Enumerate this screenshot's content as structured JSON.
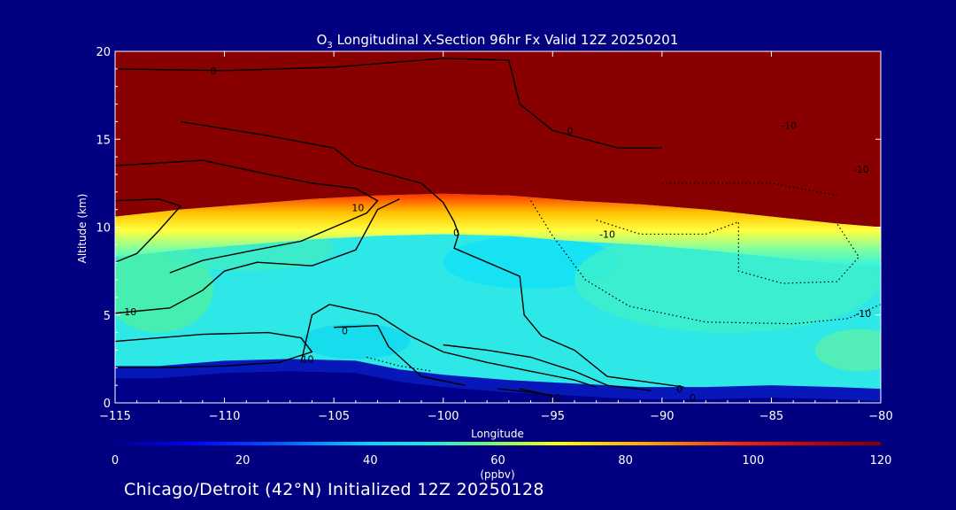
{
  "chart_data": {
    "type": "heatmap",
    "title_prefix": "O",
    "title_sub": "3",
    "title_rest": " Longitudinal X-Section 96hr  Fx Valid 12Z 20250201",
    "xlabel": "Longitude",
    "ylabel": "Altitude (km)",
    "xlim": [
      -115,
      -80
    ],
    "ylim": [
      0,
      20
    ],
    "x_ticks": [
      -115,
      -110,
      -105,
      -100,
      -95,
      -90,
      -85,
      -80
    ],
    "x_tick_labels": [
      "−115",
      "−110",
      "−105",
      "−100",
      "−95",
      "−90",
      "−85",
      "−80"
    ],
    "y_ticks": [
      0,
      5,
      10,
      15,
      20
    ],
    "y_tick_labels": [
      "0",
      "5",
      "10",
      "15",
      "20"
    ],
    "colorbar": {
      "range": [
        0,
        120
      ],
      "ticks": [
        0,
        20,
        40,
        60,
        80,
        100,
        120
      ],
      "tick_labels": [
        "0",
        "20",
        "40",
        "60",
        "80",
        "100",
        "120"
      ],
      "unit": "(ppbv)"
    },
    "shaded_field": {
      "variable": "O3 (ppbv)",
      "stratosphere_value": 120,
      "tropopause_km": [
        {
          "lon": -115,
          "alt": 10.6
        },
        {
          "lon": -112,
          "alt": 11.0
        },
        {
          "lon": -109,
          "alt": 11.3
        },
        {
          "lon": -106,
          "alt": 11.6
        },
        {
          "lon": -103,
          "alt": 11.8
        },
        {
          "lon": -100,
          "alt": 11.9
        },
        {
          "lon": -97,
          "alt": 11.8
        },
        {
          "lon": -94,
          "alt": 11.5
        },
        {
          "lon": -91,
          "alt": 11.3
        },
        {
          "lon": -88,
          "alt": 11.0
        },
        {
          "lon": -85,
          "alt": 10.6
        },
        {
          "lon": -82,
          "alt": 10.2
        },
        {
          "lon": -80,
          "alt": 10.0
        }
      ],
      "surface_km": [
        {
          "lon": -115,
          "alt": 1.6
        },
        {
          "lon": -113,
          "alt": 1.6
        },
        {
          "lon": -110,
          "alt": 1.9
        },
        {
          "lon": -107,
          "alt": 2.0
        },
        {
          "lon": -104,
          "alt": 1.9
        },
        {
          "lon": -102,
          "alt": 1.4
        },
        {
          "lon": -100,
          "alt": 1.1
        },
        {
          "lon": -97,
          "alt": 0.8
        },
        {
          "lon": -94,
          "alt": 0.6
        },
        {
          "lon": -91,
          "alt": 0.4
        },
        {
          "lon": -88,
          "alt": 0.4
        },
        {
          "lon": -85,
          "alt": 0.5
        },
        {
          "lon": -82,
          "alt": 0.4
        },
        {
          "lon": -80,
          "alt": 0.3
        }
      ],
      "troposphere_typical_ppbv": 45
    },
    "contour_labels": [
      {
        "text": "0",
        "lon": -110.5,
        "alt": 18.9
      },
      {
        "text": "0",
        "lon": -94.2,
        "alt": 15.5
      },
      {
        "text": "-10",
        "lon": -84.2,
        "alt": 15.8
      },
      {
        "text": "-10",
        "lon": -80.9,
        "alt": 13.3
      },
      {
        "text": "10",
        "lon": -103.9,
        "alt": 11.1
      },
      {
        "text": "0",
        "lon": -99.4,
        "alt": 9.7
      },
      {
        "text": "-10",
        "lon": -92.5,
        "alt": 9.6
      },
      {
        "text": "10",
        "lon": -114.3,
        "alt": 5.2
      },
      {
        "text": "-10",
        "lon": -80.8,
        "alt": 5.1
      },
      {
        "text": "0",
        "lon": -104.5,
        "alt": 4.1
      },
      {
        "text": "10",
        "lon": -106.2,
        "alt": 2.5
      },
      {
        "text": "-10",
        "lon": -95.0,
        "alt": 0.3
      },
      {
        "text": "0",
        "lon": -89.2,
        "alt": 0.8
      },
      {
        "text": "0",
        "lon": -88.6,
        "alt": 0.3
      }
    ]
  },
  "footer": "Chicago/Detroit (42°N) Initialized 12Z 20250128"
}
